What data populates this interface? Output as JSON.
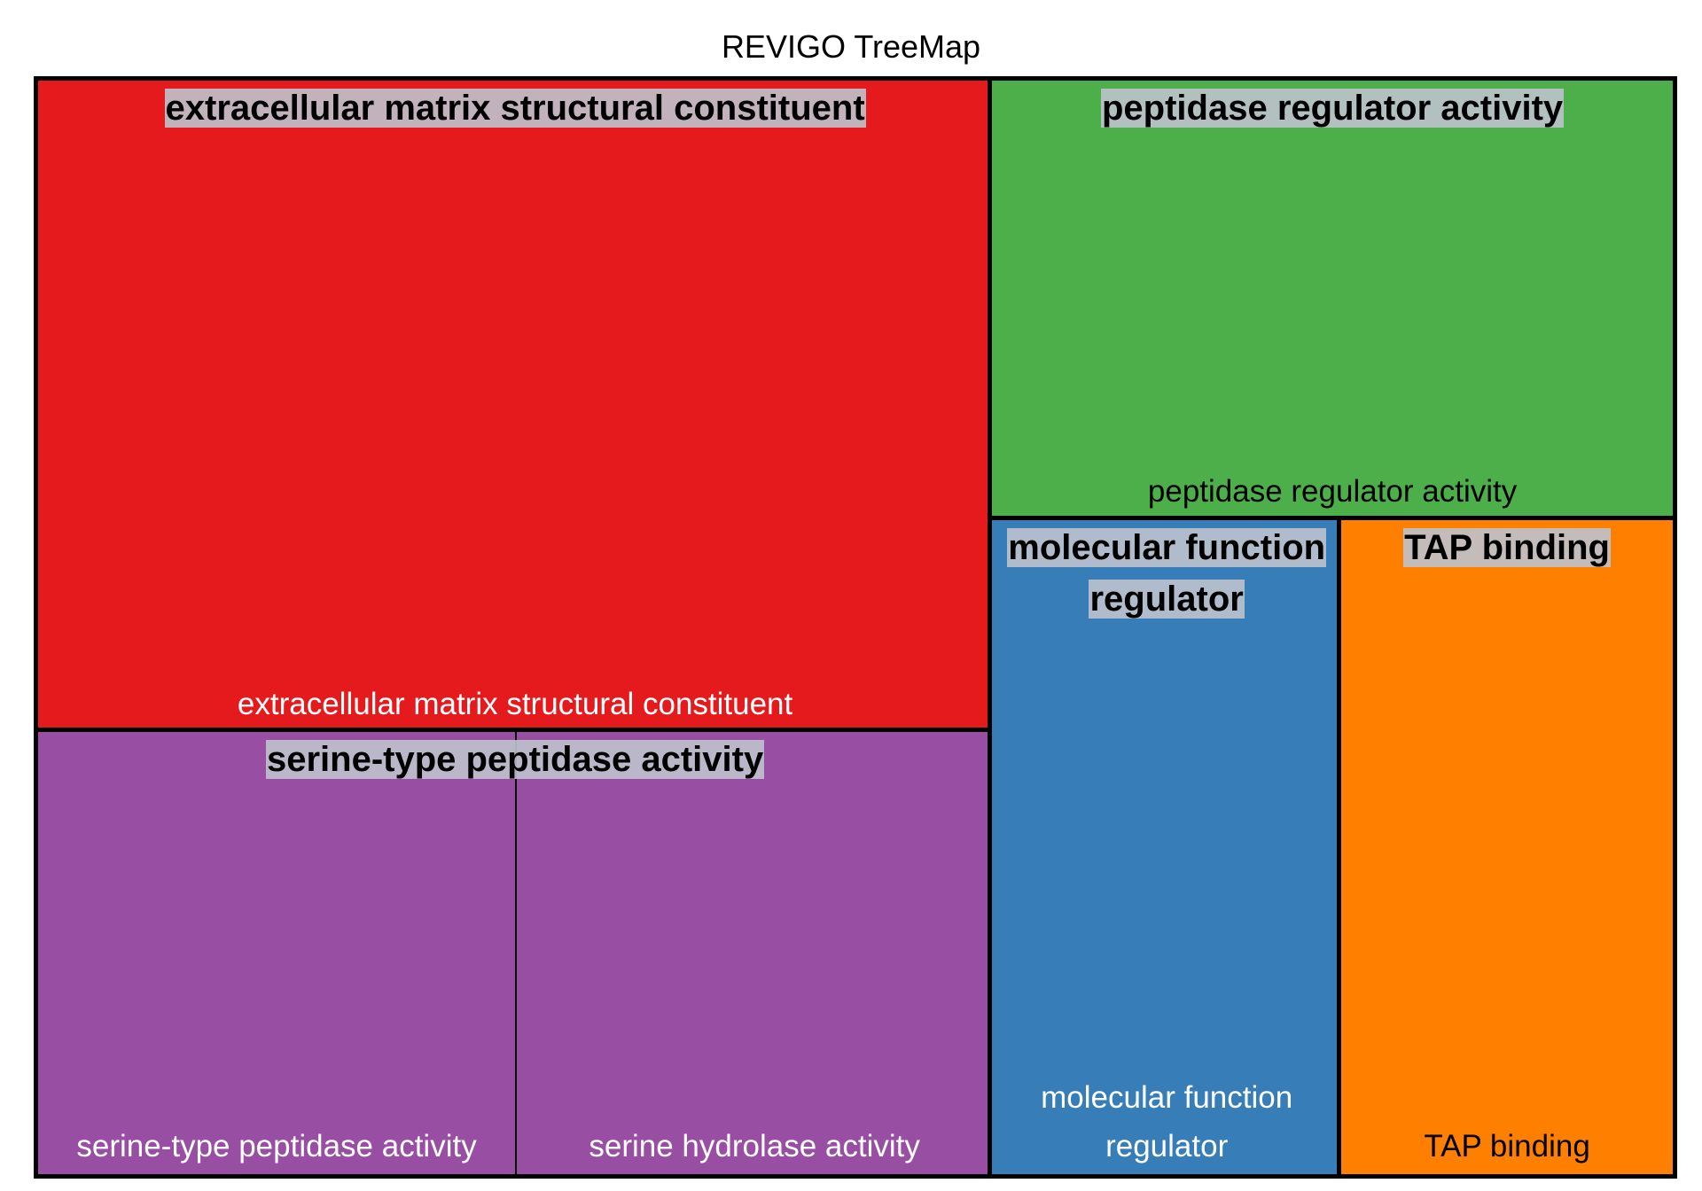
{
  "chart_data": {
    "type": "treemap",
    "title": "REVIGO TreeMap",
    "groups": [
      {
        "name": "extracellular matrix structural constituent",
        "color": "#e41a1c",
        "children": [
          {
            "name": "extracellular matrix structural constituent",
            "value": 530
          }
        ]
      },
      {
        "name": "serine-type peptidase activity",
        "color": "#984ea3",
        "children": [
          {
            "name": "serine-type peptidase activity",
            "value": 180
          },
          {
            "name": "serine hydrolase activity",
            "value": 180
          }
        ]
      },
      {
        "name": "peptidase regulator activity",
        "color": "#4daf4a",
        "children": [
          {
            "name": "peptidase regulator activity",
            "value": 255
          }
        ]
      },
      {
        "name": "molecular function regulator",
        "color": "#377eb8",
        "children": [
          {
            "name": "molecular function regulator",
            "value": 195
          }
        ]
      },
      {
        "name": "TAP binding",
        "color": "#ff7f00",
        "children": [
          {
            "name": "TAP binding",
            "value": 185
          }
        ]
      }
    ]
  }
}
